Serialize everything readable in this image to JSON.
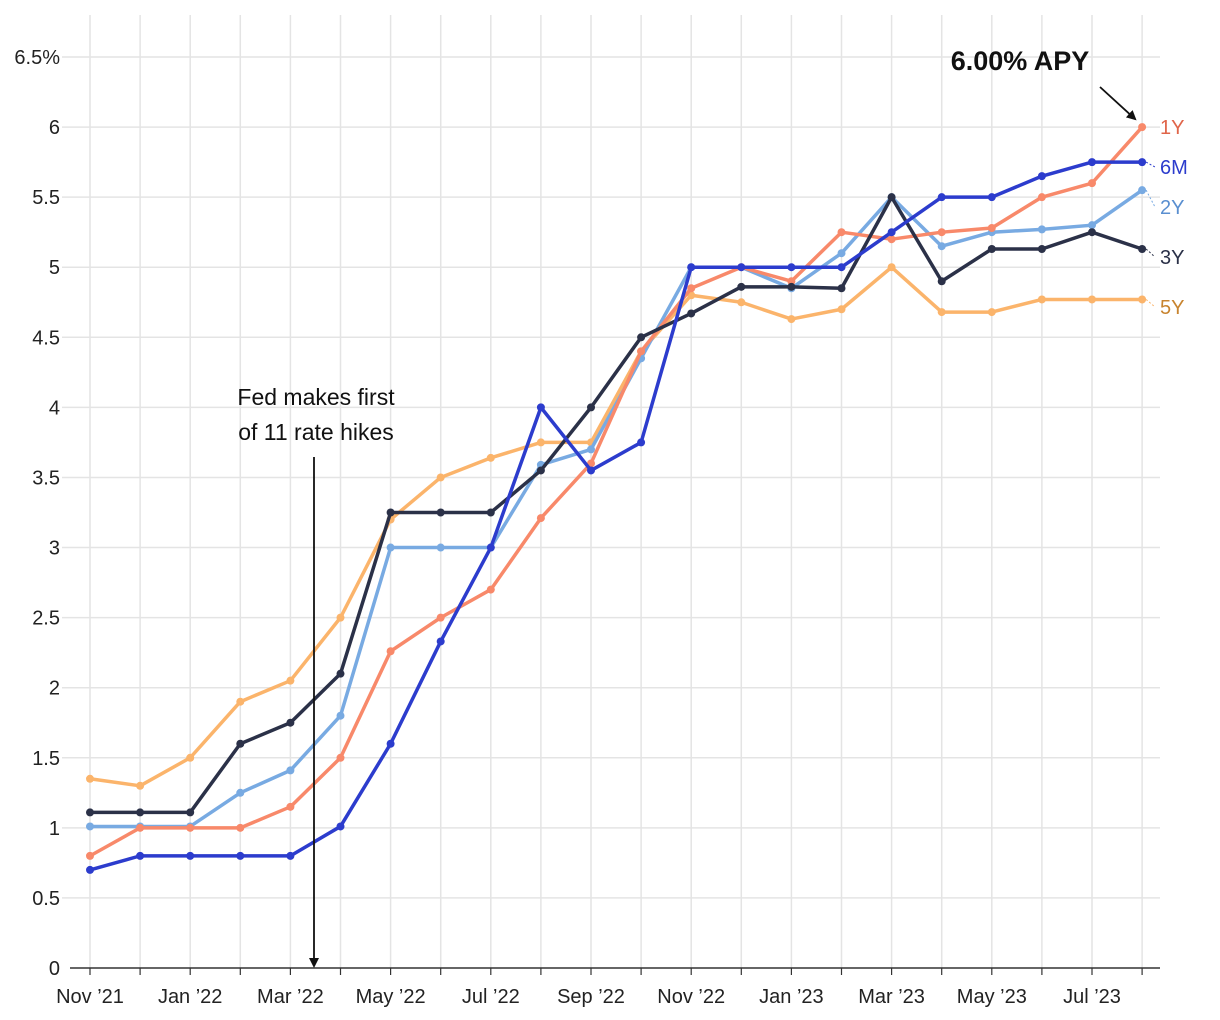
{
  "chart_data": {
    "type": "line",
    "title": "",
    "xlabel": "",
    "ylabel": "",
    "ylim": [
      0,
      6.5
    ],
    "y_ticks": [
      {
        "value": 0,
        "label": "0"
      },
      {
        "value": 0.5,
        "label": "0.5"
      },
      {
        "value": 1,
        "label": "1"
      },
      {
        "value": 1.5,
        "label": "1.5"
      },
      {
        "value": 2,
        "label": "2"
      },
      {
        "value": 2.5,
        "label": "2.5"
      },
      {
        "value": 3,
        "label": "3"
      },
      {
        "value": 3.5,
        "label": "3.5"
      },
      {
        "value": 4,
        "label": "4"
      },
      {
        "value": 4.5,
        "label": "4.5"
      },
      {
        "value": 5,
        "label": "5"
      },
      {
        "value": 5.5,
        "label": "5.5"
      },
      {
        "value": 6,
        "label": "6"
      },
      {
        "value": 6.5,
        "label": "6.5%"
      }
    ],
    "x": [
      "2021-11",
      "2021-12",
      "2022-01",
      "2022-02",
      "2022-03",
      "2022-04",
      "2022-05",
      "2022-06",
      "2022-07",
      "2022-08",
      "2022-09",
      "2022-10",
      "2022-11",
      "2022-12",
      "2023-01",
      "2023-02",
      "2023-03",
      "2023-04",
      "2023-05",
      "2023-06",
      "2023-07",
      "2023-08"
    ],
    "x_tick_labels": [
      "Nov ’21",
      "",
      "Jan ’22",
      "",
      "Mar ’22",
      "",
      "May ’22",
      "",
      "Jul ’22",
      "",
      "Sep ’22",
      "",
      "Nov ’22",
      "",
      "Jan ’23",
      "",
      "Mar ’23",
      "",
      "May ’23",
      "",
      "Jul ’23",
      ""
    ],
    "grid": true,
    "legend": "inline labels at right end of each line",
    "series": [
      {
        "name": "5Y",
        "color": "#fbb46b",
        "label_color": "#c8842f",
        "values": [
          1.35,
          1.3,
          1.5,
          1.9,
          2.05,
          2.5,
          3.2,
          3.5,
          3.64,
          3.75,
          3.75,
          4.4,
          4.8,
          4.75,
          4.63,
          4.7,
          5.0,
          4.68,
          4.68,
          4.77,
          4.77,
          4.77
        ]
      },
      {
        "name": "2Y",
        "color": "#78aae2",
        "label_color": "#5a8fd0",
        "values": [
          1.01,
          1.01,
          1.01,
          1.25,
          1.41,
          1.8,
          3.0,
          3.0,
          3.0,
          3.59,
          3.7,
          4.35,
          5.0,
          5.0,
          4.85,
          5.1,
          5.5,
          5.15,
          5.25,
          5.27,
          5.3,
          5.55
        ]
      },
      {
        "name": "1Y",
        "color": "#f8896a",
        "label_color": "#e0654a",
        "values": [
          0.8,
          1.0,
          1.0,
          1.0,
          1.15,
          1.5,
          2.26,
          2.5,
          2.7,
          3.21,
          3.6,
          4.4,
          4.85,
          5.0,
          4.9,
          5.25,
          5.2,
          5.25,
          5.28,
          5.5,
          5.6,
          6.0
        ]
      },
      {
        "name": "3Y",
        "color": "#2b3148",
        "label_color": "#2b3148",
        "values": [
          1.11,
          1.11,
          1.11,
          1.6,
          1.75,
          2.1,
          3.25,
          3.25,
          3.25,
          3.55,
          4.0,
          4.5,
          4.67,
          4.86,
          4.86,
          4.85,
          5.5,
          4.9,
          5.13,
          5.13,
          5.25,
          5.13
        ]
      },
      {
        "name": "6M",
        "color": "#2c3ccd",
        "label_color": "#2c3ccd",
        "values": [
          0.7,
          0.8,
          0.8,
          0.8,
          0.8,
          1.01,
          1.6,
          2.33,
          3.0,
          4.0,
          3.55,
          3.75,
          5.0,
          5.0,
          5.0,
          5.0,
          5.25,
          5.5,
          5.5,
          5.65,
          5.75,
          5.75
        ]
      }
    ],
    "annotations": {
      "fed_hike": {
        "text_line1": "Fed makes first",
        "text_line2": "of 11 rate hikes",
        "x": "2022-03-15"
      },
      "headline": {
        "text": "6.00% APY",
        "series": "1Y",
        "x": "2023-08"
      }
    }
  }
}
